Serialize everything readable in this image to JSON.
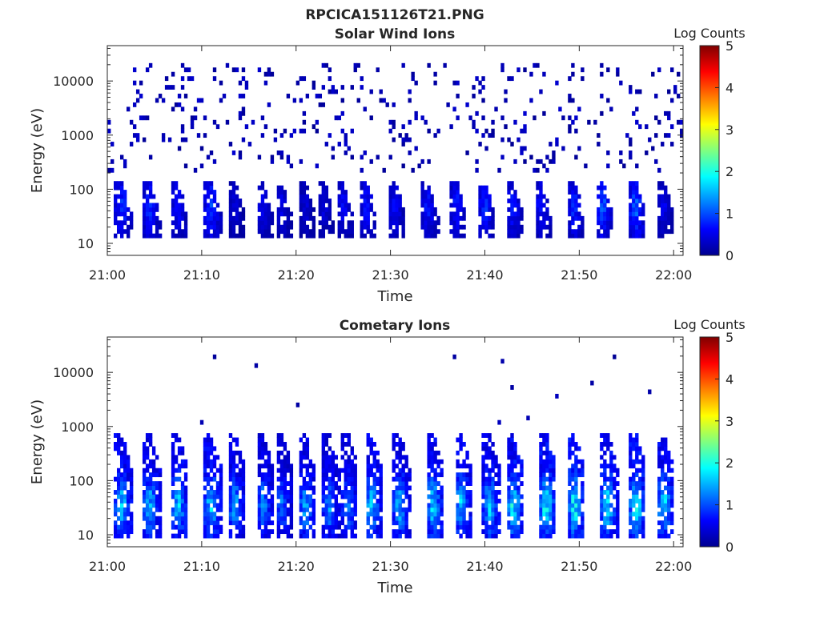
{
  "figure_title": "RPCICA151126T21.PNG",
  "chart_data": [
    {
      "type": "heatmap",
      "title": "Solar Wind Ions",
      "xlabel": "Time",
      "ylabel": "Energy (eV)",
      "x_ticks": [
        "21:00",
        "21:10",
        "21:20",
        "21:30",
        "21:40",
        "21:50",
        "22:00"
      ],
      "y_ticks": [
        "10",
        "100",
        "1000",
        "10000"
      ],
      "y_scale": "log",
      "y_range": [
        6,
        45000
      ],
      "x_range": [
        "21:00",
        "22:01"
      ],
      "colorbar": {
        "label": "Log Counts",
        "ticks": [
          "0",
          "1",
          "2",
          "3",
          "4",
          "5"
        ],
        "range": [
          0,
          5
        ],
        "colormap": "jet"
      },
      "grid": false,
      "description_of_values": "Sparse scattered low counts (log 0-0.5) at 200 eV - 20 keV; periodic bursts of log 0.5-1.2 counts at 15-150 eV roughly every 2.5 minutes",
      "bursts_minutes": [
        1.5,
        4.5,
        7.5,
        11,
        13.5,
        16.5,
        18.5,
        21,
        23,
        25,
        27.5,
        30.5,
        34,
        37,
        40,
        43,
        46,
        49.5,
        52.5,
        56,
        59
      ],
      "burst_intensity": [
        1.0,
        0.9,
        0.8,
        1.0,
        0.5,
        0.6,
        0.6,
        0.5,
        0.5,
        0.7,
        0.8,
        0.7,
        0.8,
        0.8,
        0.9,
        0.8,
        0.8,
        0.9,
        1.1,
        1.2,
        0.6
      ],
      "burst_energy_eV": [
        15,
        150
      ],
      "background_energy_eV": [
        200,
        20000
      ],
      "background_level": 0.1
    },
    {
      "type": "heatmap",
      "title": "Cometary Ions",
      "xlabel": "Time",
      "ylabel": "Energy (eV)",
      "x_ticks": [
        "21:00",
        "21:10",
        "21:20",
        "21:30",
        "21:40",
        "21:50",
        "22:00"
      ],
      "y_ticks": [
        "10",
        "100",
        "1000",
        "10000"
      ],
      "y_scale": "log",
      "y_range": [
        6,
        45000
      ],
      "x_range": [
        "21:00",
        "22:01"
      ],
      "colorbar": {
        "label": "Log Counts",
        "ticks": [
          "0",
          "1",
          "2",
          "3",
          "4",
          "5"
        ],
        "range": [
          0,
          5
        ],
        "colormap": "jet"
      },
      "grid": false,
      "description_of_values": "Periodic bursts about every 2.5 minutes with peak log counts ~2 near 30-50 eV, tails extending to ~1000 eV; sparse isolated points up to 20 keV",
      "bursts_minutes": [
        1.5,
        4.5,
        7.5,
        11,
        13.5,
        16.5,
        18.5,
        21,
        23.5,
        25.5,
        28,
        31,
        34.5,
        37.5,
        40.5,
        43,
        46.5,
        49.5,
        53,
        56,
        59
      ],
      "burst_intensity": [
        1.8,
        1.7,
        1.8,
        1.9,
        1.6,
        1.5,
        1.3,
        1.6,
        1.5,
        1.5,
        1.8,
        1.7,
        1.9,
        1.8,
        1.8,
        2.0,
        2.1,
        2.1,
        2.0,
        2.1,
        1.9
      ],
      "burst_energy_eV": [
        12,
        800
      ],
      "peak_energy_eV": 35,
      "background_energy_eV": [
        1000,
        20000
      ],
      "background_level": 0.05
    }
  ]
}
